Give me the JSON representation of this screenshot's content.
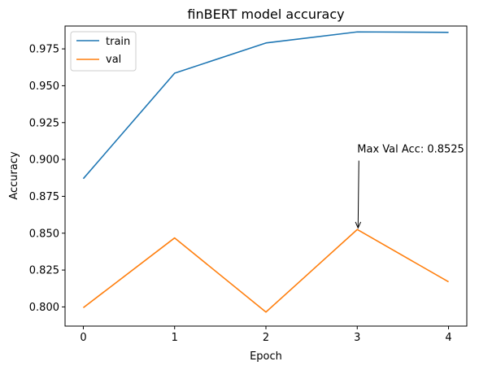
{
  "chart_data": {
    "type": "line",
    "title": "finBERT model accuracy",
    "xlabel": "Epoch",
    "ylabel": "Accuracy",
    "x": [
      0,
      1,
      2,
      3,
      4
    ],
    "xlim": [
      -0.2,
      4.2
    ],
    "ylim": [
      0.787,
      0.9905
    ],
    "xticks": [
      0,
      1,
      2,
      3,
      4
    ],
    "xtick_labels": [
      "0",
      "1",
      "2",
      "3",
      "4"
    ],
    "yticks": [
      0.8,
      0.825,
      0.85,
      0.875,
      0.9,
      0.925,
      0.95,
      0.975
    ],
    "ytick_labels": [
      "0.800",
      "0.825",
      "0.850",
      "0.875",
      "0.900",
      "0.925",
      "0.950",
      "0.975"
    ],
    "series": [
      {
        "name": "train",
        "color": "#1f77b4",
        "values": [
          0.887,
          0.9585,
          0.979,
          0.9865,
          0.9862
        ]
      },
      {
        "name": "val",
        "color": "#ff7f0e",
        "values": [
          0.7995,
          0.8468,
          0.7965,
          0.8525,
          0.817
        ]
      }
    ],
    "legend": {
      "position": "top-left"
    },
    "grid": false,
    "annotation": {
      "text": "Max Val Acc: 0.8525",
      "xy": [
        3,
        0.8525
      ],
      "xytext": [
        3,
        0.9025
      ]
    }
  }
}
